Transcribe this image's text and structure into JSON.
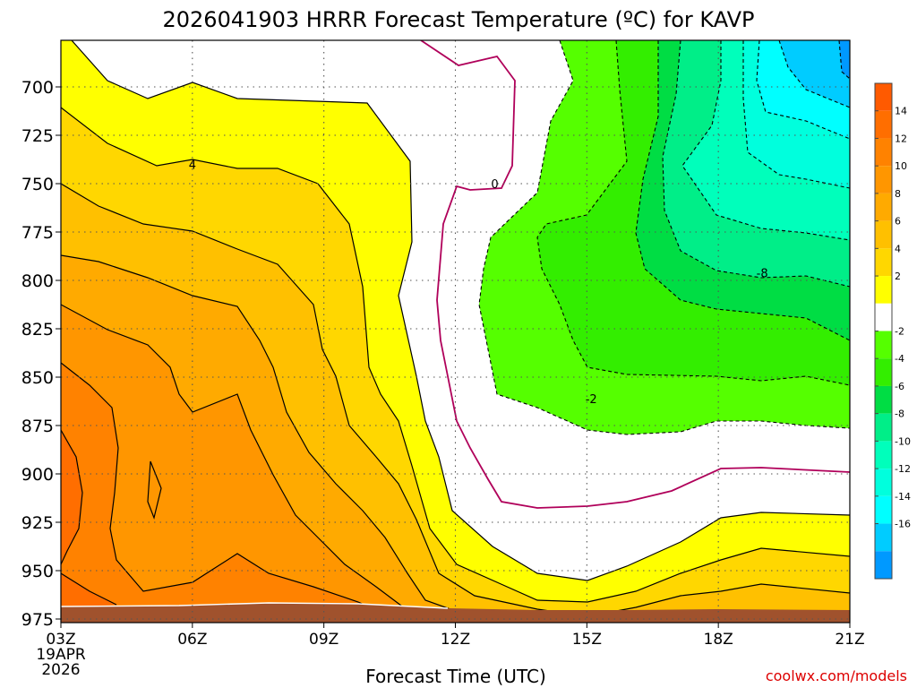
{
  "chart_data": {
    "type": "contour",
    "title": "2026041903 HRRR Forecast Temperature (ºC) for KAVP",
    "xlabel": "Forecast Time (UTC)",
    "ylabel": "",
    "x_ticks": [
      "03Z",
      "06Z",
      "09Z",
      "12Z",
      "15Z",
      "18Z",
      "21Z"
    ],
    "x_first_date_lines": [
      "19APR",
      "2026"
    ],
    "y_ticks": [
      700,
      725,
      750,
      775,
      800,
      825,
      850,
      875,
      900,
      925,
      950,
      975
    ],
    "ylim": [
      975,
      675
    ],
    "xlim_hours": [
      3,
      21
    ],
    "grid": true,
    "contour_labels": [
      {
        "text": "4",
        "hour": 6.0,
        "pressure": 740
      },
      {
        "text": "0",
        "hour": 12.9,
        "pressure": 750
      },
      {
        "text": "-8",
        "hour": 19.0,
        "pressure": 796
      },
      {
        "text": "-2",
        "hour": 15.1,
        "pressure": 861
      }
    ],
    "colorbar": {
      "labels": [
        "14",
        "12",
        "10",
        "8",
        "6",
        "4",
        "2",
        "-2",
        "-4",
        "-6",
        "-8",
        "-10",
        "-12",
        "-14",
        "-16"
      ],
      "colors": [
        "#ff5a00",
        "#ff6e00",
        "#ff8200",
        "#ff9600",
        "#ffaa00",
        "#ffc000",
        "#ffd700",
        "#ffff00",
        "#ffffff",
        "#55ff00",
        "#33ee00",
        "#00dd44",
        "#00ee88",
        "#00ffbb",
        "#00ffdd",
        "#00ffff",
        "#00ccff",
        "#0099ff"
      ]
    },
    "surface_color": "#a0522d"
  },
  "credit": "coolwx.com/models"
}
